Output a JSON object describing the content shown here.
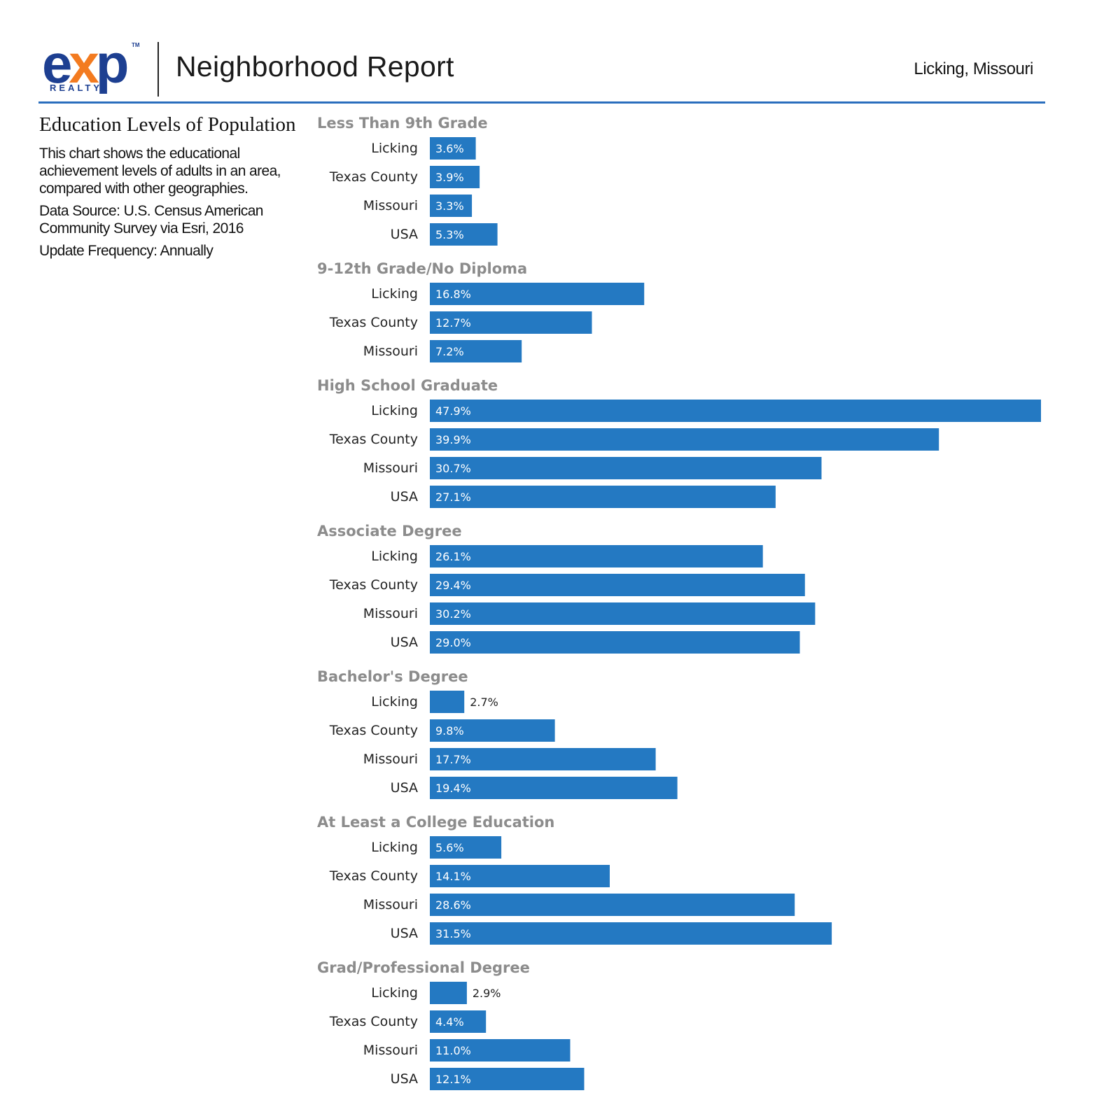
{
  "header": {
    "logo_main": "exp",
    "logo_x": "x",
    "logo_e": "e",
    "logo_p": "p",
    "logo_tm": "TM",
    "logo_sub": "REALTY",
    "title": "Neighborhood Report",
    "location": "Licking, Missouri"
  },
  "description": {
    "title": "Education Levels of Population",
    "text": "This chart shows the educational achievement levels of adults in an area, compared with other geographies.",
    "source": "Data Source: U.S. Census American Community Survey via Esri, 2016",
    "frequency": "Update Frequency: Annually"
  },
  "colors": {
    "bar": "#2479c2",
    "category_title": "#8c8c8c",
    "rule": "#2a6ebd",
    "logo_blue": "#1d3f91",
    "logo_orange": "#f37b20"
  },
  "chart_data": {
    "type": "bar",
    "orientation": "horizontal",
    "title": "Education Levels of Population",
    "unit": "%",
    "xlim": [
      0,
      47.9
    ],
    "groups": [
      {
        "name": "Less Than 9th Grade",
        "rows": [
          {
            "label": "Licking",
            "value": 3.6,
            "display": "3.6%"
          },
          {
            "label": "Texas County",
            "value": 3.9,
            "display": "3.9%"
          },
          {
            "label": "Missouri",
            "value": 3.3,
            "display": "3.3%"
          },
          {
            "label": "USA",
            "value": 5.3,
            "display": "5.3%"
          }
        ]
      },
      {
        "name": "9-12th Grade/No Diploma",
        "rows": [
          {
            "label": "Licking",
            "value": 16.8,
            "display": "16.8%"
          },
          {
            "label": "Texas County",
            "value": 12.7,
            "display": "12.7%"
          },
          {
            "label": "Missouri",
            "value": 7.2,
            "display": "7.2%"
          }
        ]
      },
      {
        "name": "High School Graduate",
        "rows": [
          {
            "label": "Licking",
            "value": 47.9,
            "display": "47.9%"
          },
          {
            "label": "Texas County",
            "value": 39.9,
            "display": "39.9%"
          },
          {
            "label": "Missouri",
            "value": 30.7,
            "display": "30.7%"
          },
          {
            "label": "USA",
            "value": 27.1,
            "display": "27.1%"
          }
        ]
      },
      {
        "name": "Associate Degree",
        "rows": [
          {
            "label": "Licking",
            "value": 26.1,
            "display": "26.1%"
          },
          {
            "label": "Texas County",
            "value": 29.4,
            "display": "29.4%"
          },
          {
            "label": "Missouri",
            "value": 30.2,
            "display": "30.2%"
          },
          {
            "label": "USA",
            "value": 29.0,
            "display": "29.0%"
          }
        ]
      },
      {
        "name": "Bachelor's Degree",
        "rows": [
          {
            "label": "Licking",
            "value": 2.7,
            "display": "2.7%"
          },
          {
            "label": "Texas County",
            "value": 9.8,
            "display": "9.8%"
          },
          {
            "label": "Missouri",
            "value": 17.7,
            "display": "17.7%"
          },
          {
            "label": "USA",
            "value": 19.4,
            "display": "19.4%"
          }
        ]
      },
      {
        "name": "At Least a College Education",
        "rows": [
          {
            "label": "Licking",
            "value": 5.6,
            "display": "5.6%"
          },
          {
            "label": "Texas County",
            "value": 14.1,
            "display": "14.1%"
          },
          {
            "label": "Missouri",
            "value": 28.6,
            "display": "28.6%"
          },
          {
            "label": "USA",
            "value": 31.5,
            "display": "31.5%"
          }
        ]
      },
      {
        "name": "Grad/Professional Degree",
        "rows": [
          {
            "label": "Licking",
            "value": 2.9,
            "display": "2.9%"
          },
          {
            "label": "Texas County",
            "value": 4.4,
            "display": "4.4%"
          },
          {
            "label": "Missouri",
            "value": 11.0,
            "display": "11.0%"
          },
          {
            "label": "USA",
            "value": 12.1,
            "display": "12.1%"
          }
        ]
      }
    ]
  }
}
